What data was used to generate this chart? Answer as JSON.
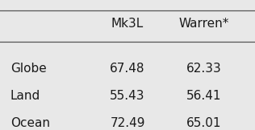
{
  "col_headers": [
    "Mk3L",
    "Warren*"
  ],
  "row_labels": [
    "Globe",
    "Land",
    "Ocean"
  ],
  "values": [
    [
      "67.48",
      "62.33"
    ],
    [
      "55.43",
      "56.41"
    ],
    [
      "72.49",
      "65.01"
    ]
  ],
  "bg_color": "#e8e8e8",
  "text_color": "#1a1a1a",
  "fontsize": 11
}
